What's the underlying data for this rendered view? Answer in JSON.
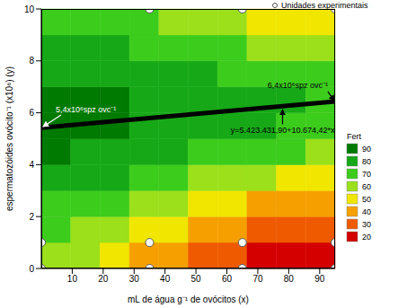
{
  "chart_data": {
    "type": "contour",
    "x_label": "mL de água g⁻¹ de ovócitos (x)",
    "y_label": "espermatozóides ovócito⁻¹ (x10⁶) (y)",
    "xlim": [
      0,
      95
    ],
    "xticks": [
      10,
      20,
      30,
      40,
      50,
      60,
      70,
      80,
      90
    ],
    "ylim": [
      0,
      10
    ],
    "yticks": [
      0,
      2,
      4,
      6,
      8,
      10
    ],
    "grid": false,
    "heatmap": {
      "x_edges": [
        0,
        9.5,
        19,
        28.5,
        38,
        47.5,
        57,
        66.5,
        76,
        85.5,
        95
      ],
      "y_edges": [
        0,
        1,
        2,
        3,
        4,
        5,
        6,
        7,
        8,
        9,
        10
      ],
      "cells": [
        [
          60,
          55,
          48,
          42,
          35,
          30,
          26,
          23,
          20,
          18
        ],
        [
          68,
          64,
          58,
          52,
          46,
          40,
          35,
          31,
          28,
          25
        ],
        [
          74,
          71,
          67,
          62,
          57,
          52,
          47,
          43,
          40,
          37
        ],
        [
          80,
          78,
          75,
          71,
          67,
          63,
          59,
          56,
          53,
          50
        ],
        [
          85,
          83,
          81,
          79,
          76,
          73,
          70,
          67,
          65,
          63
        ],
        [
          88,
          87,
          85,
          83,
          81,
          79,
          77,
          75,
          73,
          71
        ],
        [
          86,
          86,
          85,
          83,
          82,
          80,
          78,
          77,
          75,
          73
        ],
        [
          82,
          81,
          80,
          79,
          77,
          75,
          73,
          71,
          69,
          67
        ],
        [
          76,
          76,
          75,
          73,
          71,
          68,
          65,
          62,
          59,
          56
        ],
        [
          70,
          70,
          69,
          67,
          64,
          61,
          57,
          53,
          50,
          47
        ]
      ]
    },
    "colorbar": {
      "title": "Fert",
      "levels": [
        90,
        80,
        70,
        60,
        50,
        40,
        30,
        20
      ],
      "colors": [
        "#007a00",
        "#16a816",
        "#3ccc1c",
        "#9be01a",
        "#f0e600",
        "#f5a000",
        "#ef5a00",
        "#d40000"
      ]
    },
    "series": [
      {
        "name": "Unidades experimentais",
        "type": "scatter",
        "marker": "circle",
        "color": "#ffffff",
        "x": [
          35,
          65,
          95,
          0,
          35,
          65,
          95,
          0,
          35,
          65,
          95
        ],
        "y": [
          10,
          10,
          10,
          1,
          1,
          1,
          1,
          0,
          0,
          0,
          0
        ]
      }
    ],
    "regression_line": {
      "type": "line",
      "line_style": "solid",
      "color": "#000000",
      "x": [
        0,
        95
      ],
      "y": [
        5.42,
        6.44
      ]
    },
    "annotations": [
      {
        "text": "5,4x10⁶spz ovc⁻¹",
        "x": 0,
        "y": 5.4
      },
      {
        "text": "6,4x10⁶spz ovc⁻¹",
        "x": 95,
        "y": 6.4
      },
      {
        "text": "y=5.423.431,90+10.674,42*x",
        "x": 78,
        "y": 6.25
      }
    ]
  }
}
